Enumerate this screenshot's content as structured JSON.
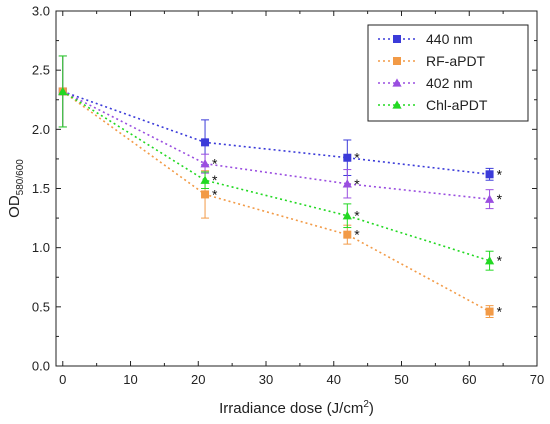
{
  "chart_data": {
    "type": "scatter",
    "xlabel": "Irradiance dose (J/cm",
    "xlabel_sup": "2",
    "xlabel_suffix": ")",
    "ylabel": "OD",
    "ylabel_sub": "580/600",
    "xlim": [
      -1,
      70
    ],
    "ylim": [
      0,
      3.0
    ],
    "xticks": [
      0,
      10,
      20,
      30,
      40,
      50,
      60,
      70
    ],
    "yticks": [
      0.0,
      0.5,
      1.0,
      1.5,
      2.0,
      2.5,
      3.0
    ],
    "ytick_labels": [
      "0.0",
      "0.5",
      "1.0",
      "1.5",
      "2.0",
      "2.5",
      "3.0"
    ],
    "xtick_labels": [
      "0",
      "10",
      "20",
      "30",
      "40",
      "50",
      "60",
      "70"
    ],
    "legend_position": "top-right",
    "significance_marker": "*",
    "grid": false,
    "series": [
      {
        "name": "440 nm",
        "color": "#3b3bd9",
        "marker": "square",
        "x": [
          0,
          21,
          42,
          63
        ],
        "y": [
          2.32,
          1.89,
          1.76,
          1.62
        ],
        "err": [
          0.3,
          0.19,
          0.15,
          0.05
        ],
        "significant": [
          false,
          false,
          true,
          true
        ]
      },
      {
        "name": "RF-aPDT",
        "color": "#f29a46",
        "marker": "square",
        "x": [
          0,
          21,
          42,
          63
        ],
        "y": [
          2.32,
          1.45,
          1.11,
          0.46
        ],
        "err": [
          0.3,
          0.2,
          0.08,
          0.05
        ],
        "significant": [
          false,
          true,
          true,
          true
        ]
      },
      {
        "name": "402 nm",
        "color": "#9a4ee0",
        "marker": "triangle",
        "x": [
          0,
          21,
          42,
          63
        ],
        "y": [
          2.32,
          1.71,
          1.54,
          1.41
        ],
        "err": [
          0.3,
          0.08,
          0.12,
          0.08
        ],
        "significant": [
          false,
          true,
          true,
          true
        ]
      },
      {
        "name": "Chl-aPDT",
        "color": "#22d822",
        "marker": "triangle",
        "x": [
          0,
          21,
          42,
          63
        ],
        "y": [
          2.32,
          1.57,
          1.27,
          0.89
        ],
        "err": [
          0.3,
          0.07,
          0.1,
          0.08
        ],
        "significant": [
          false,
          true,
          true,
          true
        ]
      }
    ]
  }
}
